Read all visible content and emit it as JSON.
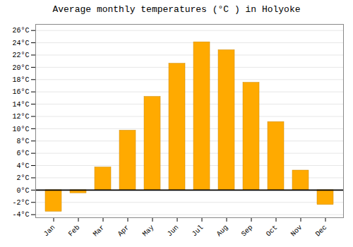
{
  "chart_data": {
    "type": "bar",
    "title": "Average monthly temperatures (°C ) in Holyoke",
    "categories": [
      "Jan",
      "Feb",
      "Mar",
      "Apr",
      "May",
      "Jun",
      "Jul",
      "Aug",
      "Sep",
      "Oct",
      "Nov",
      "Dec"
    ],
    "values": [
      -3.5,
      -0.5,
      3.7,
      9.7,
      15.2,
      20.6,
      24.1,
      22.8,
      17.5,
      11.1,
      3.2,
      -2.4
    ],
    "color": "#FFAA00",
    "ylim": [
      -4.5,
      27
    ],
    "yticks": [
      {
        "value": -4,
        "label": "-4°C"
      },
      {
        "value": -2,
        "label": "-2°C"
      },
      {
        "value": 0,
        "label": "0°C"
      },
      {
        "value": 2,
        "label": "2°C"
      },
      {
        "value": 4,
        "label": "4°C"
      },
      {
        "value": 6,
        "label": "6°C"
      },
      {
        "value": 8,
        "label": "8°C"
      },
      {
        "value": 10,
        "label": "10°C"
      },
      {
        "value": 12,
        "label": "12°C"
      },
      {
        "value": 14,
        "label": "14°C"
      },
      {
        "value": 16,
        "label": "16°C"
      },
      {
        "value": 18,
        "label": "18°C"
      },
      {
        "value": 20,
        "label": "20°C"
      },
      {
        "value": 22,
        "label": "22°C"
      },
      {
        "value": 24,
        "label": "24°C"
      },
      {
        "value": 26,
        "label": "26°C"
      }
    ],
    "grid": true
  }
}
